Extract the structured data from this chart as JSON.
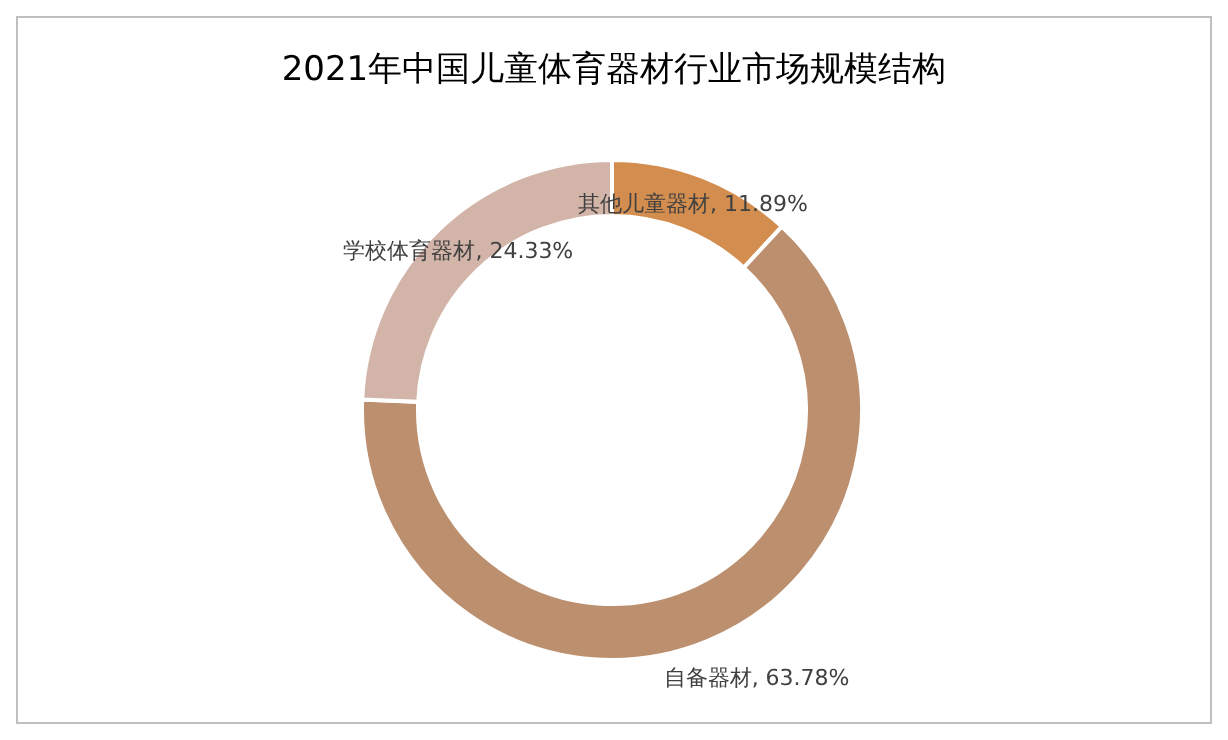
{
  "chart_data": {
    "type": "donut",
    "title": "2021年中国儿童体育器材行业市场规模结构",
    "categories": [
      "其他儿童器材",
      "自备器材",
      "学校体育器材"
    ],
    "values": [
      11.89,
      63.78,
      24.33
    ],
    "value_labels": [
      "11.89%",
      "63.78%",
      "24.33%"
    ],
    "colors": [
      "#d38d4f",
      "#bc8f6e",
      "#d2b4a8"
    ]
  }
}
